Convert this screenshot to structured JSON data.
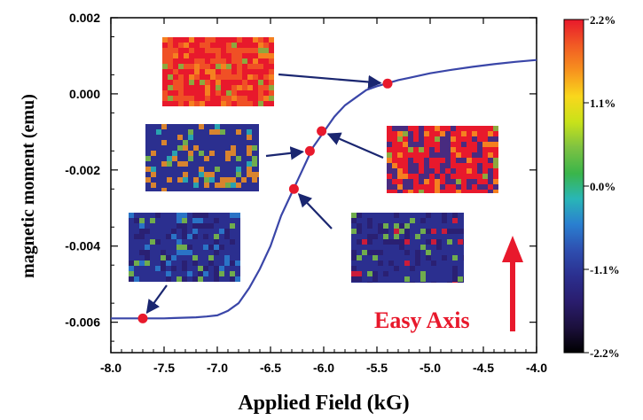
{
  "chart_data": {
    "type": "line",
    "xlabel": "Applied Field (kG)",
    "ylabel": "magnetic moment (emu)",
    "xlim": [
      -8.0,
      -4.0
    ],
    "ylim": [
      -0.0068,
      0.002
    ],
    "x_ticks": [
      "-8.0",
      "-7.5",
      "-7.0",
      "-6.5",
      "-6.0",
      "-5.5",
      "-5.0",
      "-4.5",
      "-4.0"
    ],
    "y_ticks": [
      "0.002",
      "0.000",
      "-0.002",
      "-0.004",
      "-0.006"
    ],
    "grid": false,
    "series": [
      {
        "color": "#3a46a8",
        "x": [
          -8.0,
          -7.9,
          -7.8,
          -7.7,
          -7.6,
          -7.5,
          -7.4,
          -7.3,
          -7.2,
          -7.1,
          -7.0,
          -6.9,
          -6.8,
          -6.7,
          -6.6,
          -6.5,
          -6.45,
          -6.4,
          -6.35,
          -6.3,
          -6.25,
          -6.2,
          -6.15,
          -6.1,
          -6.05,
          -6.0,
          -5.95,
          -5.9,
          -5.85,
          -5.8,
          -5.7,
          -5.6,
          -5.5,
          -5.4,
          -5.3,
          -5.2,
          -5.1,
          -5.0,
          -4.8,
          -4.6,
          -4.4,
          -4.2,
          -4.0
        ],
        "y": [
          -0.0059,
          -0.0059,
          -0.0059,
          -0.0059,
          -0.0059,
          -0.0059,
          -0.00589,
          -0.00588,
          -0.00587,
          -0.00585,
          -0.00582,
          -0.0057,
          -0.0055,
          -0.0051,
          -0.0046,
          -0.004,
          -0.0036,
          -0.0032,
          -0.0029,
          -0.0026,
          -0.0023,
          -0.002,
          -0.0017,
          -0.0014,
          -0.0012,
          -0.001,
          -0.0008,
          -0.0006,
          -0.00045,
          -0.0003,
          -0.0001,
          0.0001,
          0.0002,
          0.00028,
          0.00036,
          0.00042,
          0.00048,
          0.00054,
          0.00063,
          0.00071,
          0.00078,
          0.00084,
          0.00089
        ]
      }
    ],
    "markers": [
      {
        "x": -7.7,
        "y": -0.0059,
        "color": "#e8192c"
      },
      {
        "x": -6.28,
        "y": -0.0025,
        "color": "#e8192c"
      },
      {
        "x": -6.13,
        "y": -0.0015,
        "color": "#e8192c"
      },
      {
        "x": -6.02,
        "y": -0.00098,
        "color": "#e8192c"
      },
      {
        "x": -5.4,
        "y": 0.00027,
        "color": "#e8192c"
      }
    ],
    "colorbar": {
      "labels": [
        "2.2%",
        "1.1%",
        "0.0%",
        "-1.1%",
        "-2.2%"
      ],
      "colors": [
        "#e8192c",
        "#f15a24",
        "#f7931e",
        "#f9d71c",
        "#c8e21a",
        "#7dc242",
        "#3ab54a",
        "#29b6b6",
        "#2a7fd0",
        "#2e4fb0",
        "#2b2f8f",
        "#2a1d6e",
        "#1c103d",
        "#000000"
      ]
    },
    "annotation": {
      "text": "Easy Axis",
      "color": "#e8192c"
    }
  }
}
